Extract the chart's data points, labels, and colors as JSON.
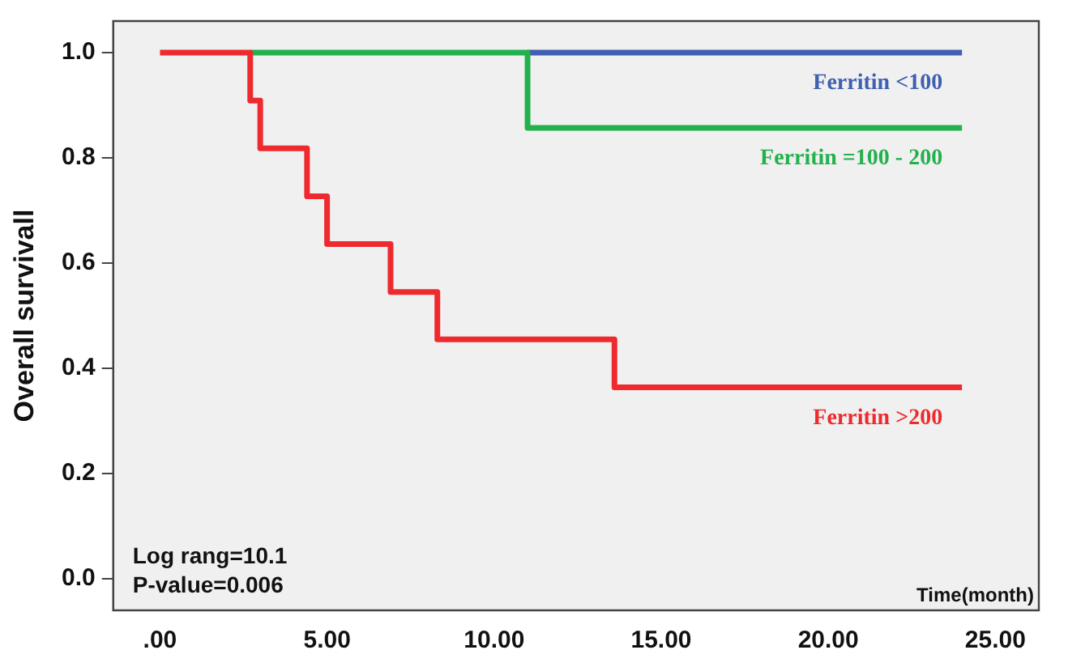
{
  "chart_data": {
    "type": "step",
    "ylabel": "Overall survivall",
    "xlabel": "Time(month)",
    "annotations": [
      "Log rang=10.1",
      "P-value=0.006"
    ],
    "series": [
      {
        "name": "Ferritin <100",
        "color": "#3f5fb0",
        "x": [
          11,
          24
        ],
        "values": [
          1,
          1
        ]
      },
      {
        "name": "Ferritin =100 - 200",
        "color": "#23b14d",
        "x": [
          2.7,
          11,
          24
        ],
        "values": [
          1,
          0.857,
          0.857
        ]
      },
      {
        "name": "Ferritin >200",
        "color": "#ee2a2e",
        "x": [
          0,
          2.7,
          3.0,
          4.4,
          5.0,
          6.9,
          8.3,
          13.6,
          24
        ],
        "values": [
          1,
          0.909,
          0.818,
          0.727,
          0.636,
          0.545,
          0.455,
          0.364,
          0.364
        ]
      }
    ],
    "xlim": [
      -1.4,
      26.3
    ],
    "xticks": [
      {
        "value": 0,
        "label": ".00"
      },
      {
        "value": 5,
        "label": "5.00"
      },
      {
        "value": 10,
        "label": "10.00"
      },
      {
        "value": 15,
        "label": "15.00"
      },
      {
        "value": 20,
        "label": "20.00"
      },
      {
        "value": 25,
        "label": "25.00"
      }
    ],
    "ylim": [
      -0.06,
      1.06
    ],
    "yticks": [
      {
        "value": 0,
        "label": "0.0"
      },
      {
        "value": 0.2,
        "label": "0.2"
      },
      {
        "value": 0.4,
        "label": "0.4"
      },
      {
        "value": 0.6,
        "label": "0.6"
      },
      {
        "value": 0.8,
        "label": "0.8"
      },
      {
        "value": 1,
        "label": "1.0"
      }
    ],
    "grid": false,
    "legend": false
  }
}
